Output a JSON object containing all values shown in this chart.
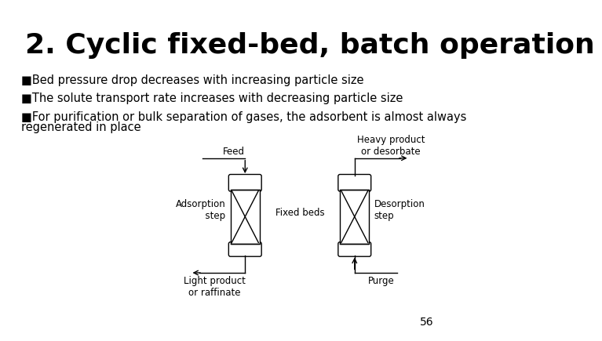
{
  "title": "2. Cyclic fixed-bed, batch operation",
  "bullet1": "■Bed pressure drop decreases with increasing particle size",
  "bullet2": "■The solute transport rate increases with decreasing particle size",
  "bullet3_line1": "■For purification or bulk separation of gases, the adsorbent is almost always",
  "bullet3_line2": "regenerated in place",
  "page_number": "56",
  "bg_color": "#ffffff",
  "text_color": "#000000",
  "title_fontsize": 26,
  "bullet_fontsize": 10.5,
  "page_fontsize": 10,
  "diag_fontsize": 8.5
}
